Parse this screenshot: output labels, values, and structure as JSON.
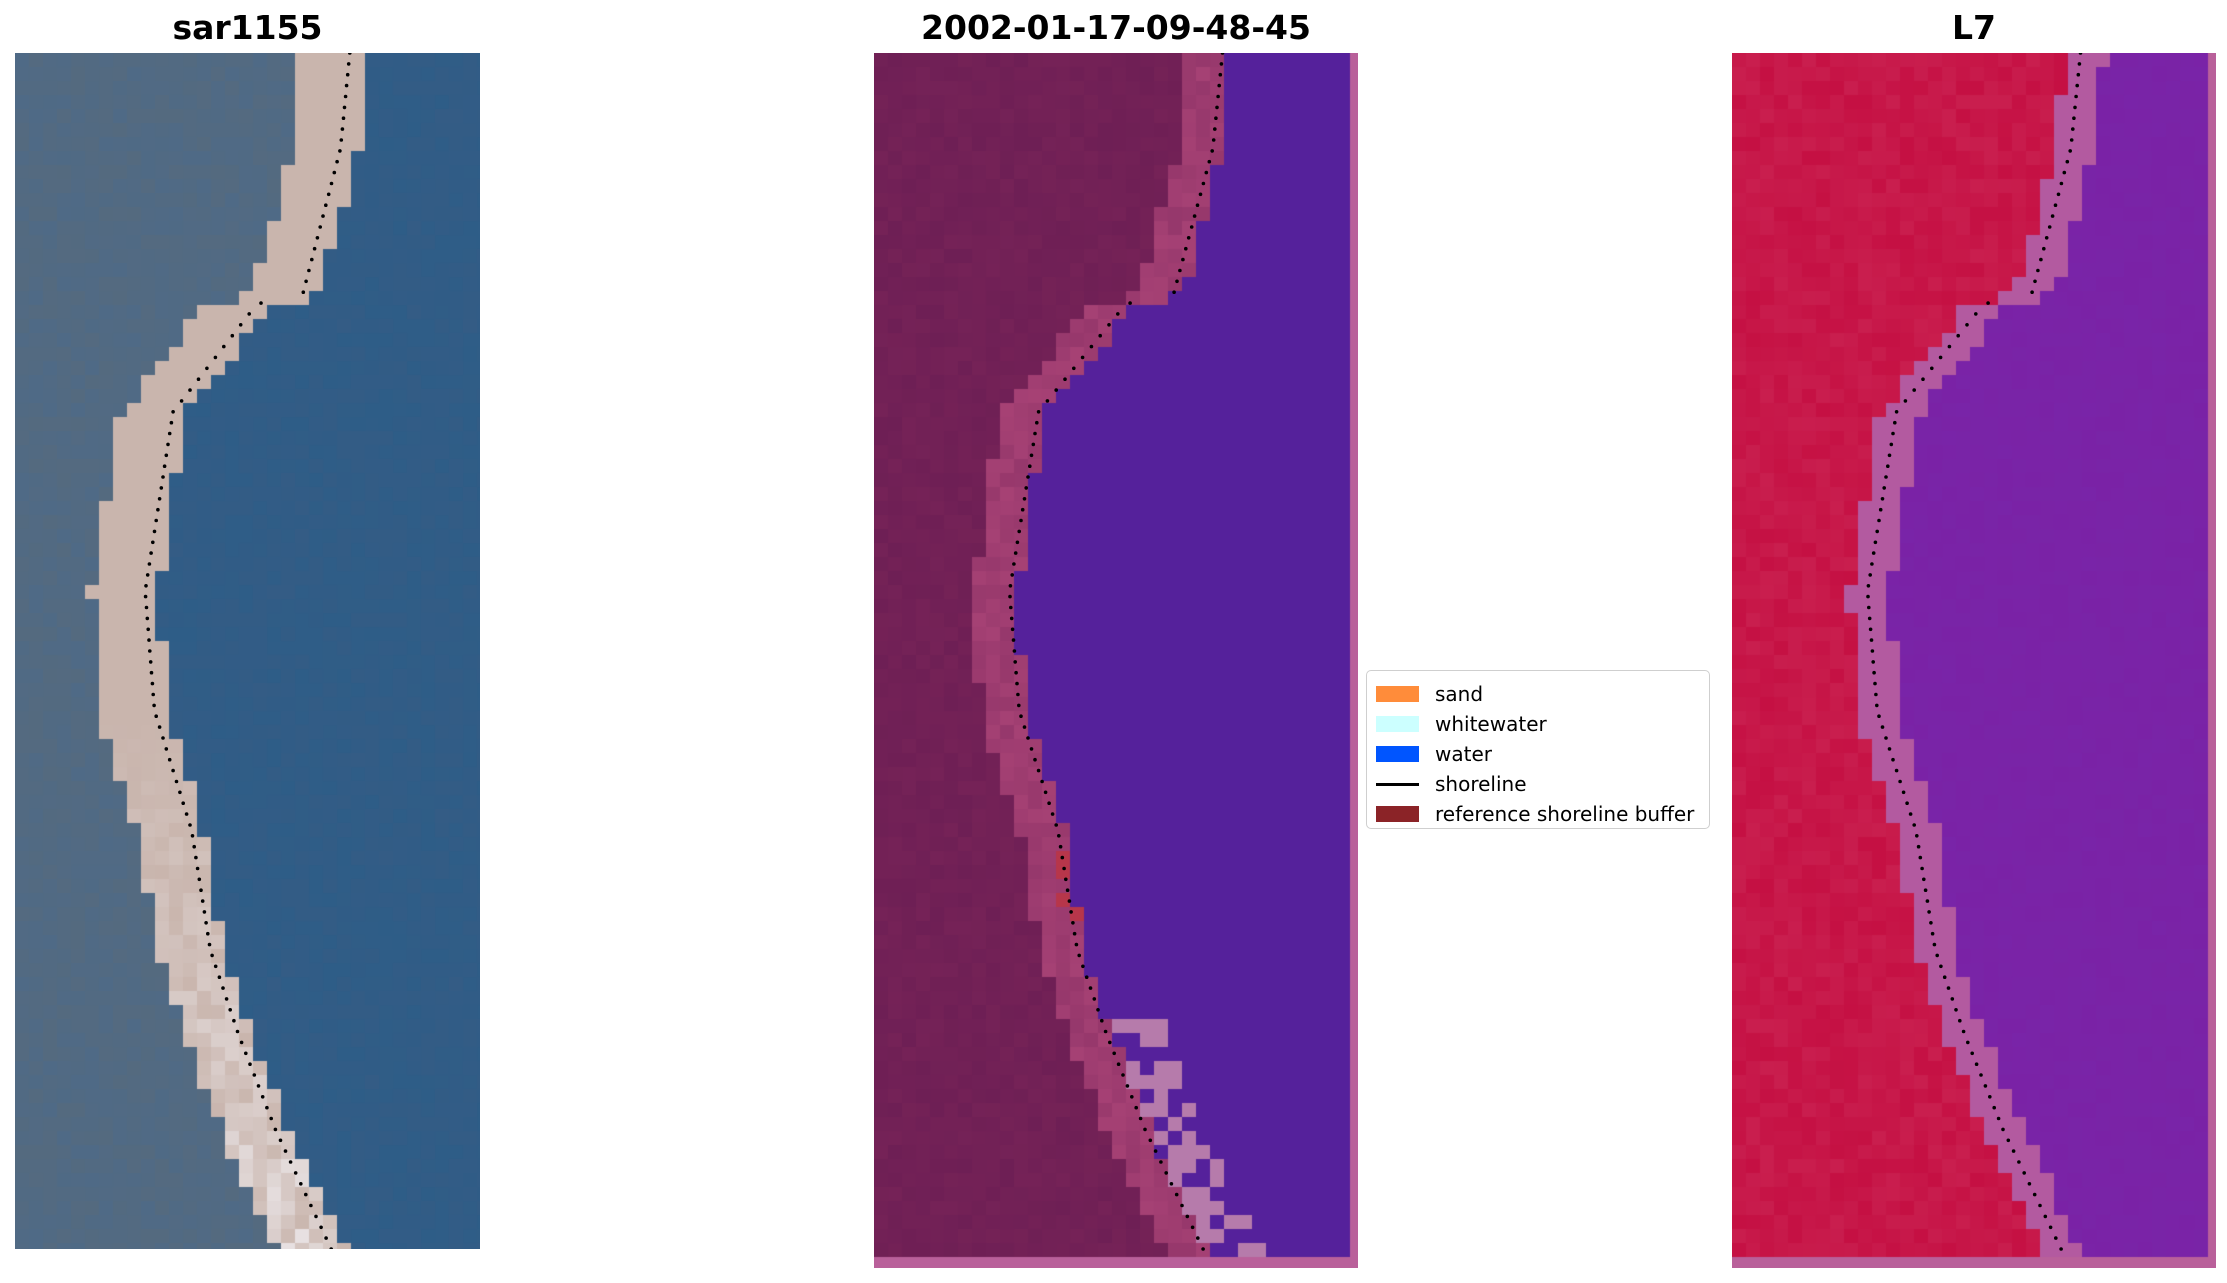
{
  "panels": [
    {
      "title": "sar1155"
    },
    {
      "title": "2002-01-17-09-48-45"
    },
    {
      "title": "L7"
    }
  ],
  "legend": {
    "items": [
      {
        "label": "sand",
        "color": "#ff8c3a"
      },
      {
        "label": "whitewater",
        "color": "#ccffff"
      },
      {
        "label": "water",
        "color": "#0055ff"
      },
      {
        "label": "shoreline",
        "color": "#000000"
      },
      {
        "label": "reference shoreline buffer",
        "color": "#8b2327"
      }
    ]
  },
  "colors": {
    "rgb_water": "#2e5d87",
    "rgb_sand": "#c9b5ad",
    "rgb_land": "#4f6a86",
    "class_land": "#6e1f55",
    "class_water": "#55219b",
    "class_whitewater": "#b67bab",
    "class_buffer": "#b7364a",
    "l7_land": "#c51043",
    "l7_water": "#7a22a6",
    "l7_edge": "#b35aa0",
    "border": "#b9609a"
  }
}
